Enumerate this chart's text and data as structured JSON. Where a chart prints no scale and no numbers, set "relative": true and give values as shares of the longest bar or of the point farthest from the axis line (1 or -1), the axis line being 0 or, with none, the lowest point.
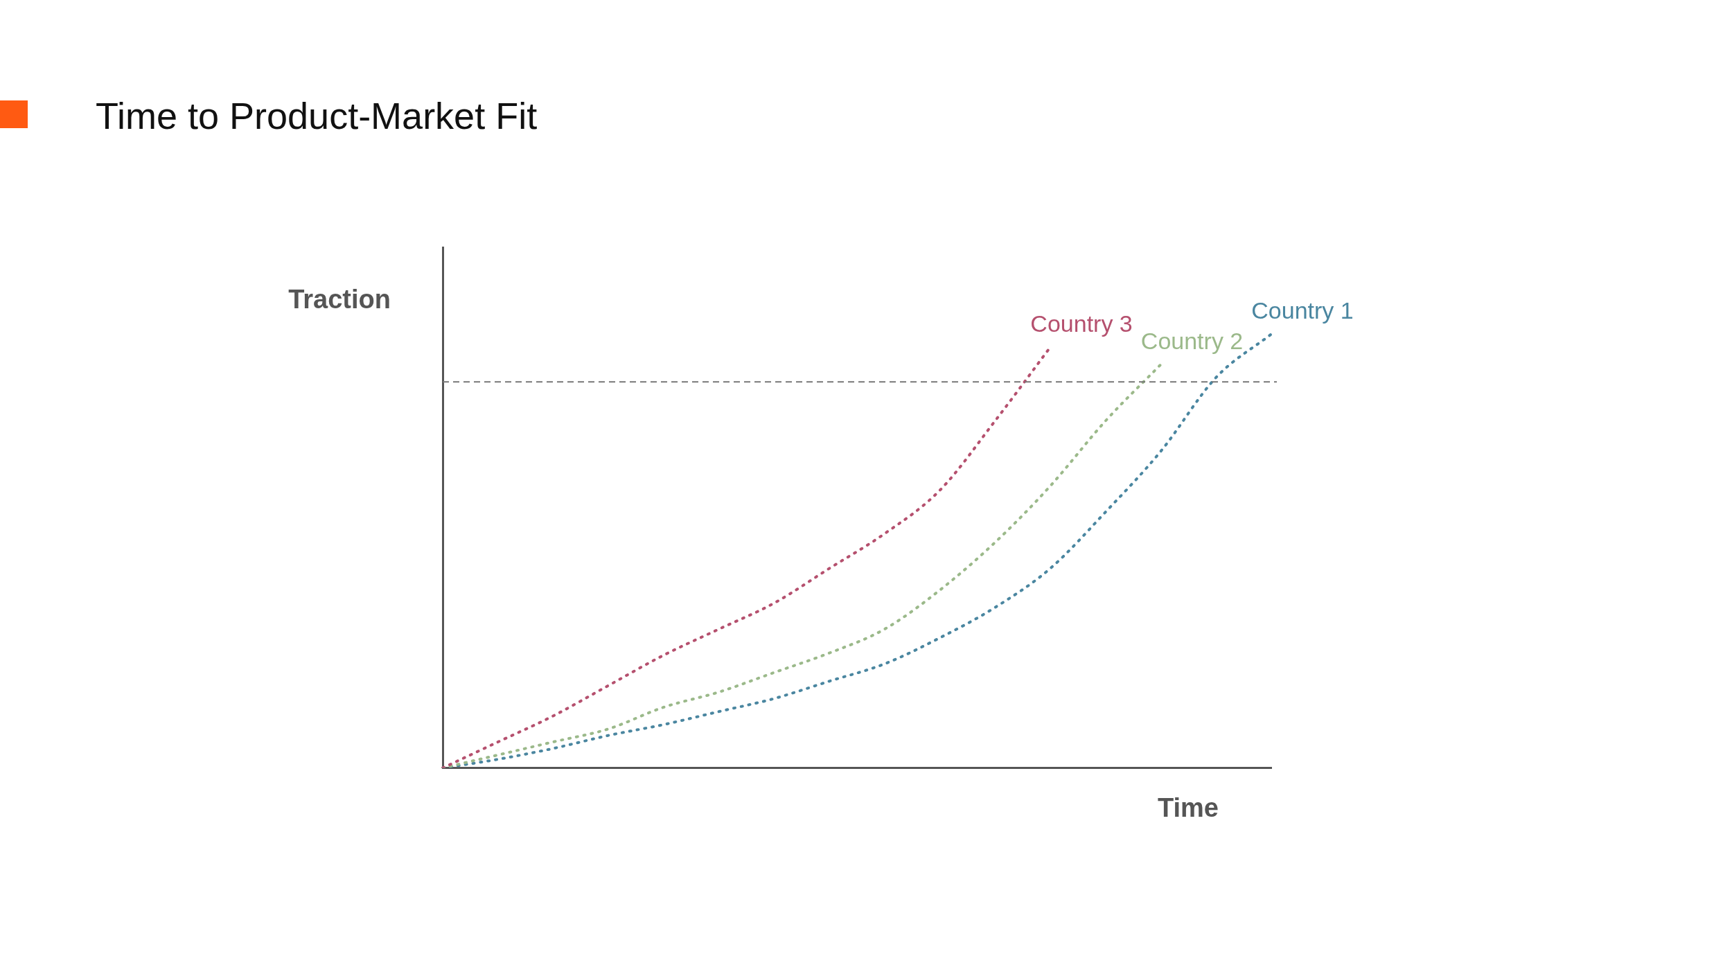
{
  "chart_data": {
    "type": "line",
    "title": "Time to Product-Market Fit",
    "xlabel": "Time",
    "ylabel": "Traction",
    "relative": true,
    "grid": false,
    "legend": false,
    "marker": "none",
    "line_style": "dotted",
    "categories": [
      null,
      null,
      null,
      null,
      null,
      null,
      null,
      null,
      null,
      null,
      null,
      null,
      null,
      null,
      null,
      null
    ],
    "series": [
      {
        "name": "Country 3",
        "color": "#b5506e",
        "values": [
          0,
          0.06,
          0.12,
          0.19,
          0.26,
          0.32,
          0.38,
          0.46,
          0.54,
          0.64,
          0.8,
          0.97,
          null,
          null,
          null,
          null
        ]
      },
      {
        "name": "Country 2",
        "color": "#9bb98a",
        "values": [
          0,
          0.03,
          0.06,
          0.09,
          0.14,
          0.175,
          0.22,
          0.265,
          0.32,
          0.41,
          0.52,
          0.65,
          0.8,
          0.93,
          null,
          null
        ]
      },
      {
        "name": "Country 1",
        "color": "#4a86a0",
        "values": [
          0,
          0.02,
          0.045,
          0.075,
          0.1,
          0.13,
          0.16,
          0.2,
          0.24,
          0.3,
          0.37,
          0.46,
          0.59,
          0.73,
          0.9,
          1
        ]
      }
    ],
    "ref_lines": [
      {
        "axis": "y",
        "value": 0.89,
        "color": "#777777",
        "line_style": "dashed"
      }
    ]
  }
}
